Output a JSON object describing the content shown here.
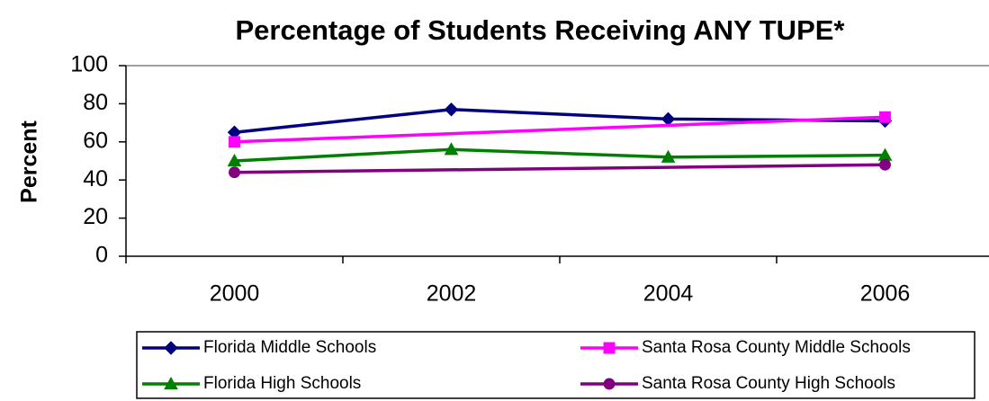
{
  "chart_data": {
    "type": "line",
    "title": "Percentage of Students Receiving ANY TUPE*",
    "y_label": "Percent",
    "x": [
      2000,
      2002,
      2004,
      2006
    ],
    "series": [
      {
        "name": "Florida Middle Schools",
        "color": "#000080",
        "marker": "diamond",
        "values": [
          65,
          77,
          72,
          71
        ]
      },
      {
        "name": "Santa Rosa County Middle Schools",
        "color": "#ff00ff",
        "marker": "square",
        "x": [
          2000,
          2006
        ],
        "values": [
          60,
          73
        ]
      },
      {
        "name": "Florida High Schools",
        "color": "#008000",
        "marker": "triangle",
        "values": [
          50,
          56,
          52,
          53
        ]
      },
      {
        "name": "Santa Rosa County High Schools",
        "color": "#800080",
        "marker": "circle",
        "x": [
          2000,
          2006
        ],
        "values": [
          44,
          48
        ]
      }
    ],
    "ylim": [
      0,
      100
    ],
    "yticks": [
      0,
      20,
      40,
      60,
      80,
      100
    ],
    "grid": false,
    "legend": "bottom"
  }
}
